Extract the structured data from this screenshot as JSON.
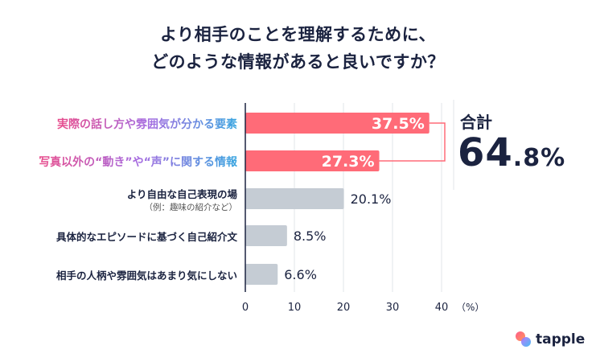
{
  "chart_data": {
    "type": "bar",
    "orientation": "horizontal",
    "title": [
      "より相手のことを理解するために、",
      "どのような情報があると良いですか？"
    ],
    "categories": [
      {
        "label": "実際の話し方や雰囲気が分かる要素",
        "sub": ""
      },
      {
        "label": "写真以外の“動き”や“声”に関する情報",
        "sub": ""
      },
      {
        "label": "より自由な自己表現の場",
        "sub": "（例：趣味の紹介など）"
      },
      {
        "label": "具体的なエピソードに基づく自己紹介文",
        "sub": ""
      },
      {
        "label": "相手の人柄や雰囲気はあまり気にしない",
        "sub": ""
      }
    ],
    "values": [
      37.5,
      27.3,
      20.1,
      8.5,
      6.6
    ],
    "value_labels": [
      "37.5%",
      "27.3%",
      "20.1%",
      "8.5%",
      "6.6%"
    ],
    "highlighted": [
      true,
      true,
      false,
      false,
      false
    ],
    "xlim": [
      0,
      40
    ],
    "xticks": [
      "0",
      "10",
      "20",
      "30",
      "40"
    ],
    "xunit": "（%）",
    "grid": true,
    "colors": {
      "highlight": "#ff6b78",
      "normal": "#c5ccd4",
      "text": "#1b2340"
    },
    "annotation": {
      "label": "合計",
      "value": "64.8%",
      "value_int": "64",
      "value_dec": ".8%"
    }
  },
  "brand": {
    "name": "tapple"
  }
}
